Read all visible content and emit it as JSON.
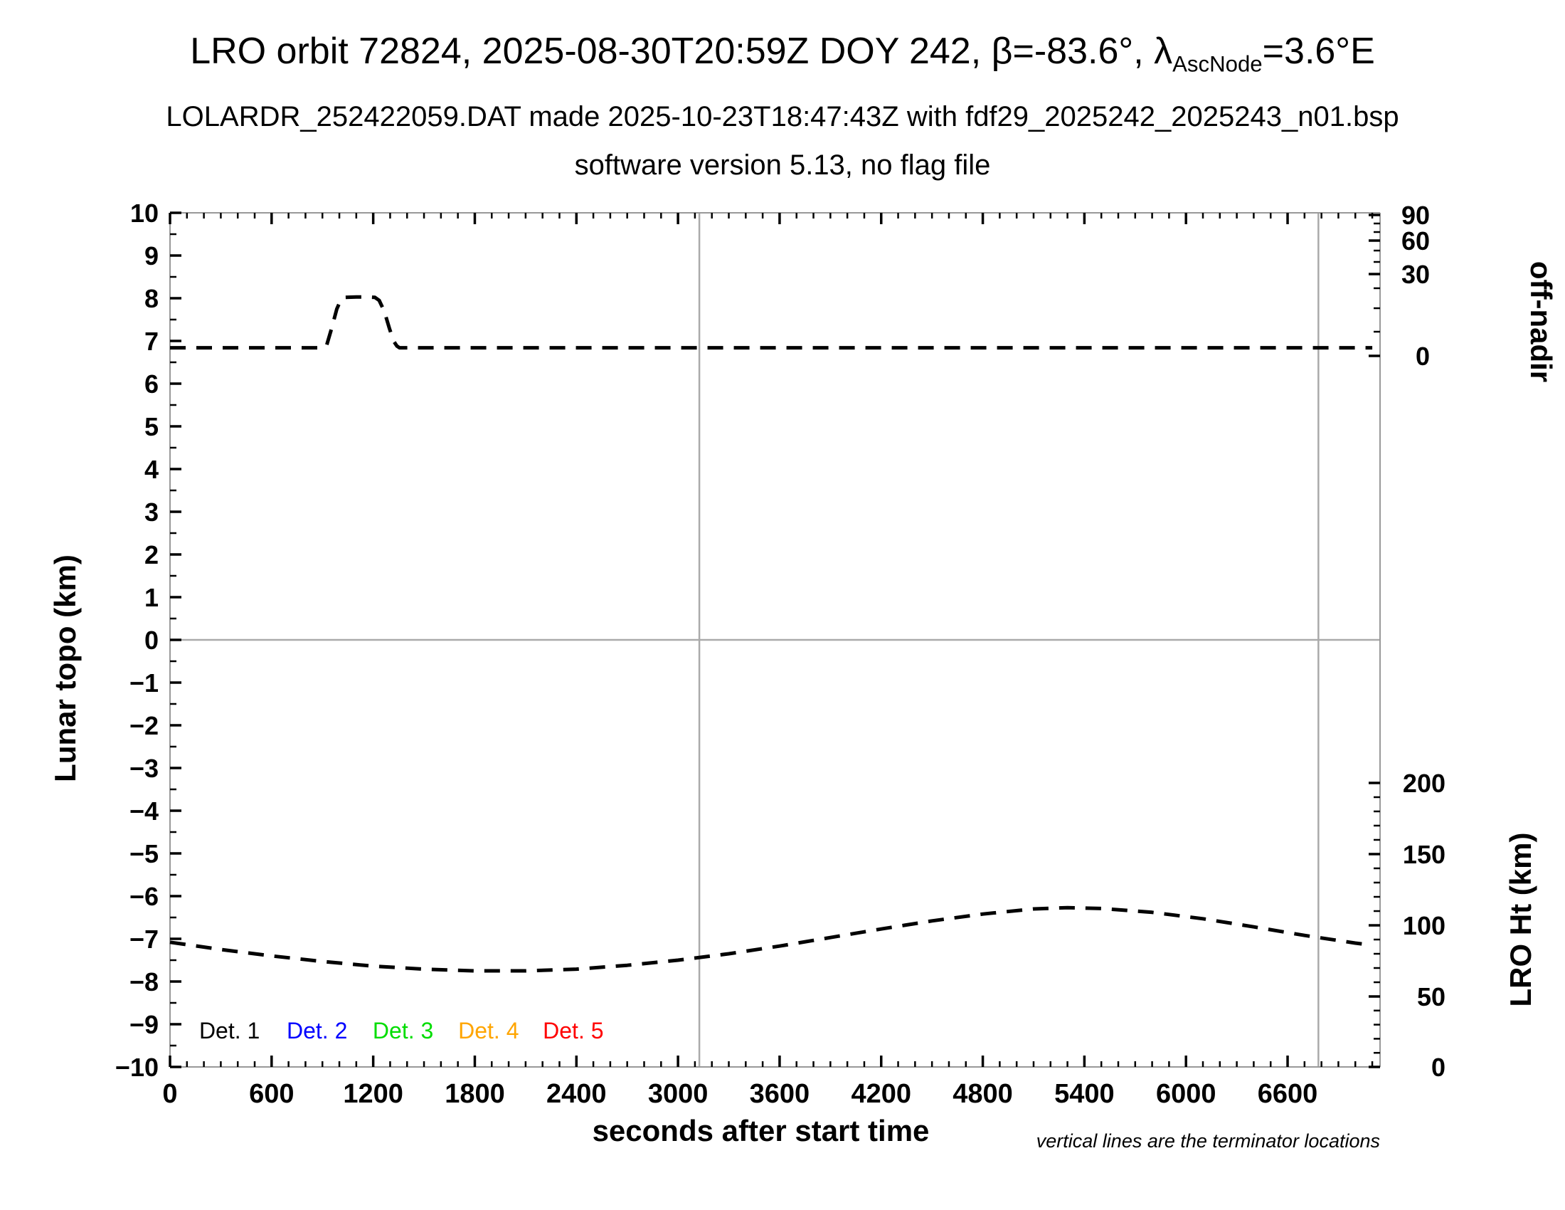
{
  "header": {
    "title_prefix": "LRO orbit 72824, 2025-08-30T20:59Z DOY 242, β=-83.6°, λ",
    "title_subscript": "AscNode",
    "title_suffix": "=3.6°E",
    "subtitle_line1": "LOLARDR_252422059.DAT made 2025-10-23T18:47:43Z with fdf29_2025242_2025243_n01.bsp",
    "subtitle_line2": "software version 5.13, no flag file"
  },
  "footer": {
    "note": "vertical lines are the terminator locations"
  },
  "chart_data": {
    "type": "line",
    "xlabel": "seconds after start time",
    "grid": false,
    "colors": {
      "axis_frame": "#999999",
      "reference_line": "#aaaaaa",
      "tick": "#000000",
      "curve": "#000000"
    },
    "left_axis": {
      "label": "Lunar topo (km)",
      "range": [
        -10,
        10
      ],
      "major_step": 1,
      "minor_step": 0.5
    },
    "x_axis": {
      "range": [
        0,
        7146
      ],
      "major_ticks": [
        0,
        600,
        1200,
        1800,
        2400,
        3000,
        3600,
        4200,
        4800,
        5400,
        6000,
        6600
      ],
      "minor_step": 100
    },
    "right_axis_top": {
      "label": "off-nadir",
      "major_ticks": [
        {
          "value": 90,
          "frac": 0.0025
        },
        {
          "value": 60,
          "frac": 0.0325
        },
        {
          "value": 30,
          "frac": 0.0717
        },
        {
          "value": 0,
          "frac": 0.1675
        }
      ],
      "minor_fracs": [
        0.0125,
        0.0225,
        0.0442,
        0.0575,
        0.0883,
        0.1117,
        0.1392
      ]
    },
    "right_axis_bottom": {
      "label": "LRO Ht (km)",
      "major_ticks": [
        {
          "value": 200,
          "frac": 0.6675
        },
        {
          "value": 150,
          "frac": 0.7508
        },
        {
          "value": 100,
          "frac": 0.8342
        },
        {
          "value": 50,
          "frac": 0.9175
        },
        {
          "value": 0,
          "frac": 1.0
        }
      ],
      "minors_between": 4,
      "km_per_left_unit": 30
    },
    "reference_lines": {
      "horizontal_zero_y": 0,
      "terminator_x": [
        3126,
        6782
      ]
    },
    "series": [
      {
        "name": "off-nadir-angle",
        "axis": "right_top",
        "units": "plotted in left-axis coordinate units",
        "line_style": "dashed",
        "color": "#000000",
        "points": [
          [
            0,
            6.84
          ],
          [
            300,
            6.84
          ],
          [
            600,
            6.84
          ],
          [
            900,
            6.84
          ],
          [
            925,
            6.9
          ],
          [
            955,
            7.3
          ],
          [
            985,
            7.75
          ],
          [
            1010,
            7.97
          ],
          [
            1030,
            8.02
          ],
          [
            1100,
            8.03
          ],
          [
            1160,
            8.03
          ],
          [
            1210,
            8.02
          ],
          [
            1235,
            7.95
          ],
          [
            1265,
            7.7
          ],
          [
            1295,
            7.3
          ],
          [
            1320,
            7.0
          ],
          [
            1340,
            6.88
          ],
          [
            1355,
            6.84
          ],
          [
            1800,
            6.84
          ],
          [
            2400,
            6.84
          ],
          [
            3000,
            6.84
          ],
          [
            3600,
            6.84
          ],
          [
            4200,
            6.84
          ],
          [
            4800,
            6.84
          ],
          [
            5400,
            6.84
          ],
          [
            6000,
            6.84
          ],
          [
            6600,
            6.84
          ],
          [
            7100,
            6.84
          ]
        ]
      },
      {
        "name": "lro-height",
        "axis": "right_bottom",
        "units": "plotted in left-axis coordinate units; height km = (value+10)*30",
        "line_style": "dashed",
        "color": "#000000",
        "points": [
          [
            0,
            -7.08
          ],
          [
            300,
            -7.25
          ],
          [
            600,
            -7.4
          ],
          [
            900,
            -7.53
          ],
          [
            1200,
            -7.64
          ],
          [
            1500,
            -7.71
          ],
          [
            1800,
            -7.75
          ],
          [
            2100,
            -7.75
          ],
          [
            2400,
            -7.71
          ],
          [
            2700,
            -7.62
          ],
          [
            3000,
            -7.5
          ],
          [
            3300,
            -7.35
          ],
          [
            3600,
            -7.17
          ],
          [
            3900,
            -6.97
          ],
          [
            4200,
            -6.77
          ],
          [
            4500,
            -6.58
          ],
          [
            4800,
            -6.42
          ],
          [
            5100,
            -6.3
          ],
          [
            5300,
            -6.27
          ],
          [
            5500,
            -6.29
          ],
          [
            5800,
            -6.38
          ],
          [
            6100,
            -6.53
          ],
          [
            6400,
            -6.72
          ],
          [
            6700,
            -6.92
          ],
          [
            7000,
            -7.1
          ],
          [
            7100,
            -7.15
          ]
        ]
      }
    ],
    "legend": {
      "y_value": -9.15,
      "x_values": [
        172,
        689,
        1197,
        1702,
        2202
      ],
      "items": [
        {
          "label": "Det. 1",
          "color": "#000000"
        },
        {
          "label": "Det. 2",
          "color": "#0000ff"
        },
        {
          "label": "Det. 3",
          "color": "#00dd00"
        },
        {
          "label": "Det. 4",
          "color": "#ffa500"
        },
        {
          "label": "Det. 5",
          "color": "#ff0000"
        }
      ]
    }
  }
}
